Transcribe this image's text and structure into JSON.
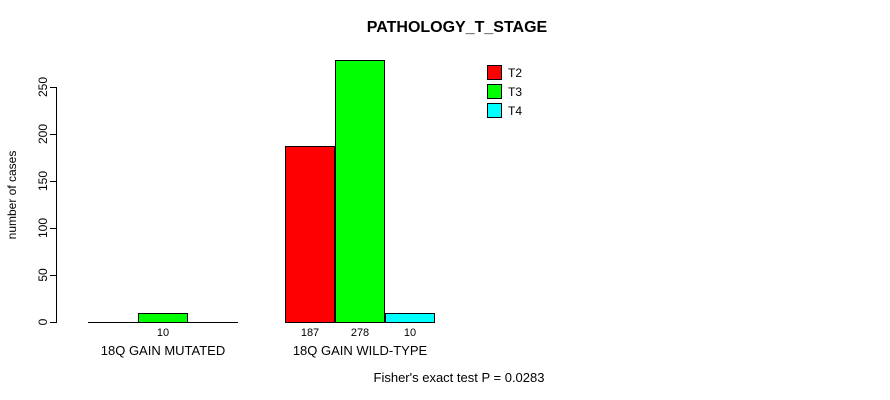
{
  "chart_data": {
    "type": "bar",
    "title": "PATHOLOGY_T_STAGE",
    "xlabel": "",
    "ylabel": "number of cases",
    "categories": [
      "18Q GAIN MUTATED",
      "18Q GAIN WILD-TYPE"
    ],
    "series": [
      {
        "name": "T2",
        "color": "#ff0000",
        "values": [
          0,
          187
        ]
      },
      {
        "name": "T3",
        "color": "#00ff00",
        "values": [
          10,
          278
        ]
      },
      {
        "name": "T4",
        "color": "#00ffff",
        "values": [
          0,
          10
        ]
      }
    ],
    "bar_labels": [
      [
        "",
        "10",
        ""
      ],
      [
        "187",
        "278",
        "10"
      ]
    ],
    "yticks": [
      0,
      50,
      100,
      150,
      200,
      250
    ],
    "ylim": [
      0,
      278
    ],
    "grid": false,
    "legend_position": "top-right",
    "legend_entries": [
      "T2",
      "T3",
      "T4"
    ],
    "annotation": "Fisher's exact test P = 0.0283",
    "background_color": "#ffffff",
    "text_color": "#000000"
  }
}
